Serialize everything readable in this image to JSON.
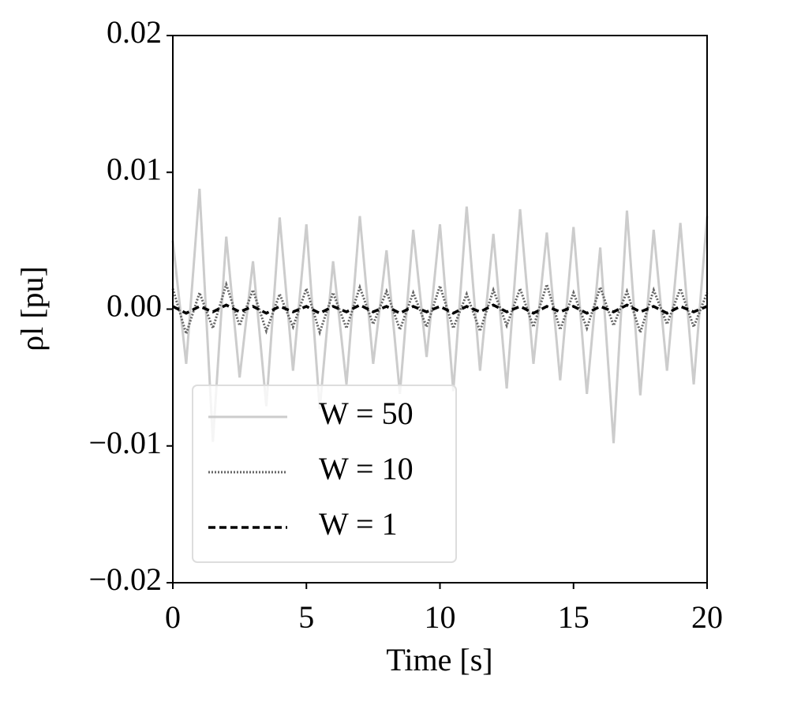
{
  "chart_data": {
    "type": "line",
    "xlabel": "Time [s]",
    "ylabel": "ρl [pu]",
    "x": [
      0,
      0.5,
      1,
      1.5,
      2,
      2.5,
      3,
      3.5,
      4,
      4.5,
      5,
      5.5,
      6,
      6.5,
      7,
      7.5,
      8,
      8.5,
      9,
      9.5,
      10,
      10.5,
      11,
      11.5,
      12,
      12.5,
      13,
      13.5,
      14,
      14.5,
      15,
      15.5,
      16,
      16.5,
      17,
      17.5,
      18,
      18.5,
      19,
      19.5,
      20
    ],
    "series": [
      {
        "name": "W = 50",
        "color": "#cccccc",
        "linestyle": "solid",
        "values": [
          0.005,
          -0.004,
          0.0088,
          -0.0097,
          0.0053,
          -0.005,
          0.0035,
          -0.0071,
          0.0067,
          -0.0045,
          0.0062,
          -0.0073,
          0.0035,
          -0.0055,
          0.0068,
          -0.004,
          0.0043,
          -0.0062,
          0.0058,
          -0.0035,
          0.0062,
          -0.006,
          0.0075,
          -0.0045,
          0.0055,
          -0.0058,
          0.0073,
          -0.004,
          0.0056,
          -0.0052,
          0.006,
          -0.0062,
          0.0045,
          -0.0098,
          0.0072,
          -0.0063,
          0.0058,
          -0.0045,
          0.0063,
          -0.0055,
          0.0068
        ]
      },
      {
        "name": "W = 10",
        "color": "#666666",
        "linestyle": "dotted",
        "values": [
          0.0015,
          -0.0018,
          0.0012,
          -0.0014,
          0.0018,
          -0.0012,
          0.0014,
          -0.0016,
          0.0011,
          -0.0013,
          0.0015,
          -0.0017,
          0.0012,
          -0.0014,
          0.0016,
          -0.0011,
          0.0013,
          -0.0015,
          0.0012,
          -0.0013,
          0.0017,
          -0.0014,
          0.0011,
          -0.0016,
          0.0014,
          -0.0012,
          0.0015,
          -0.0013,
          0.0018,
          -0.0015,
          0.0012,
          -0.0014,
          0.0016,
          -0.0012,
          0.0013,
          -0.0017,
          0.0014,
          -0.0011,
          0.0015,
          -0.0013,
          0.0012
        ]
      },
      {
        "name": "W = 1",
        "color": "#000000",
        "linestyle": "dashed",
        "values": [
          0.0002,
          -0.0003,
          0.0002,
          -0.0002,
          0.0003,
          -0.0002,
          0.0002,
          -0.0003,
          0.0002,
          -0.0002,
          0.0002,
          -0.0003,
          0.0002,
          -0.0002,
          0.0003,
          -0.0002,
          0.0002,
          -0.0003,
          0.0002,
          -0.0002,
          0.0002,
          -0.0003,
          0.0002,
          -0.0002,
          0.0003,
          -0.0002,
          0.0002,
          -0.0003,
          0.0002,
          -0.0002,
          0.0002,
          -0.0003,
          0.0002,
          -0.0002,
          0.0003,
          -0.0002,
          0.0002,
          -0.0003,
          0.0002,
          -0.0002,
          0.0002
        ]
      }
    ],
    "xlim": [
      0,
      20
    ],
    "xticks": [
      0,
      5,
      10,
      15,
      20
    ],
    "ylim": [
      -0.02,
      0.02
    ],
    "yticks": [
      {
        "value": -0.02,
        "label": "−0.02"
      },
      {
        "value": -0.01,
        "label": "−0.01"
      },
      {
        "value": 0,
        "label": "0.00"
      },
      0.01,
      0.02
    ],
    "legend": "lower left"
  }
}
